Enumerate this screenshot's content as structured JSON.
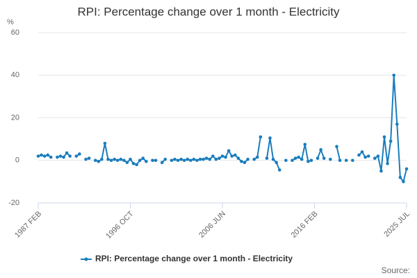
{
  "chart_data": {
    "type": "line",
    "title": "RPI: Percentage change over 1 month - Electricity",
    "y_unit": "%",
    "source": "Source:",
    "categories": [
      "1987 FEB",
      null,
      null,
      null,
      null,
      null,
      null,
      null,
      null,
      null,
      null,
      null,
      null,
      null,
      null,
      null,
      null,
      null,
      null,
      null,
      null,
      null,
      null,
      null,
      null,
      null,
      null,
      null,
      null,
      "1996 OCT",
      null,
      null,
      null,
      null,
      null,
      null,
      null,
      null,
      null,
      null,
      null,
      null,
      null,
      null,
      null,
      null,
      null,
      null,
      null,
      null,
      null,
      null,
      null,
      null,
      null,
      null,
      null,
      null,
      "2006 JUN",
      null,
      null,
      null,
      null,
      null,
      null,
      null,
      null,
      null,
      null,
      null,
      null,
      null,
      null,
      null,
      null,
      null,
      null,
      null,
      null,
      null,
      null,
      null,
      null,
      null,
      null,
      null,
      null,
      "2016 FEB",
      null,
      null,
      null,
      null,
      null,
      null,
      null,
      null,
      null,
      null,
      null,
      null,
      null,
      null,
      null,
      null,
      null,
      null,
      null,
      null,
      null,
      null,
      null,
      null,
      null,
      null,
      null,
      null,
      "2025 JUL"
    ],
    "series": [
      {
        "name": "RPI: Percentage change over 1 month - Electricity",
        "color": "#1a7dbd",
        "values": [
          2,
          2.5,
          2,
          2.5,
          1.5,
          null,
          1.5,
          2,
          1.5,
          3.5,
          2,
          null,
          2,
          3,
          null,
          0.5,
          1,
          null,
          0,
          -0.5,
          0.5,
          8,
          0.5,
          0,
          0.5,
          0,
          0.5,
          0,
          -1,
          0.5,
          -1.5,
          -2,
          0,
          1,
          -0.5,
          null,
          0,
          0,
          null,
          -1,
          0.5,
          null,
          0,
          0.5,
          0,
          0.5,
          0,
          0.5,
          0,
          0.5,
          0,
          0.5,
          0.5,
          1,
          0.5,
          2,
          0.5,
          1,
          2,
          1.5,
          4.5,
          2,
          2.5,
          1,
          -0.5,
          -1,
          0.5,
          null,
          0.5,
          1.5,
          11,
          null,
          1,
          10.5,
          0.5,
          -1,
          -4.5,
          null,
          0,
          null,
          0,
          1,
          1.5,
          0.5,
          7.5,
          -0.5,
          0,
          null,
          1,
          5,
          1,
          null,
          0.5,
          null,
          6.5,
          0,
          null,
          0,
          null,
          0,
          null,
          2.5,
          4,
          1.5,
          2,
          null,
          1,
          2,
          -5,
          11,
          -1.5,
          9,
          40,
          17,
          -8,
          -10,
          -4
        ]
      }
    ],
    "ylim": [
      -20,
      60
    ],
    "yticks": [
      -20,
      0,
      20,
      40,
      60
    ],
    "grid": true
  }
}
